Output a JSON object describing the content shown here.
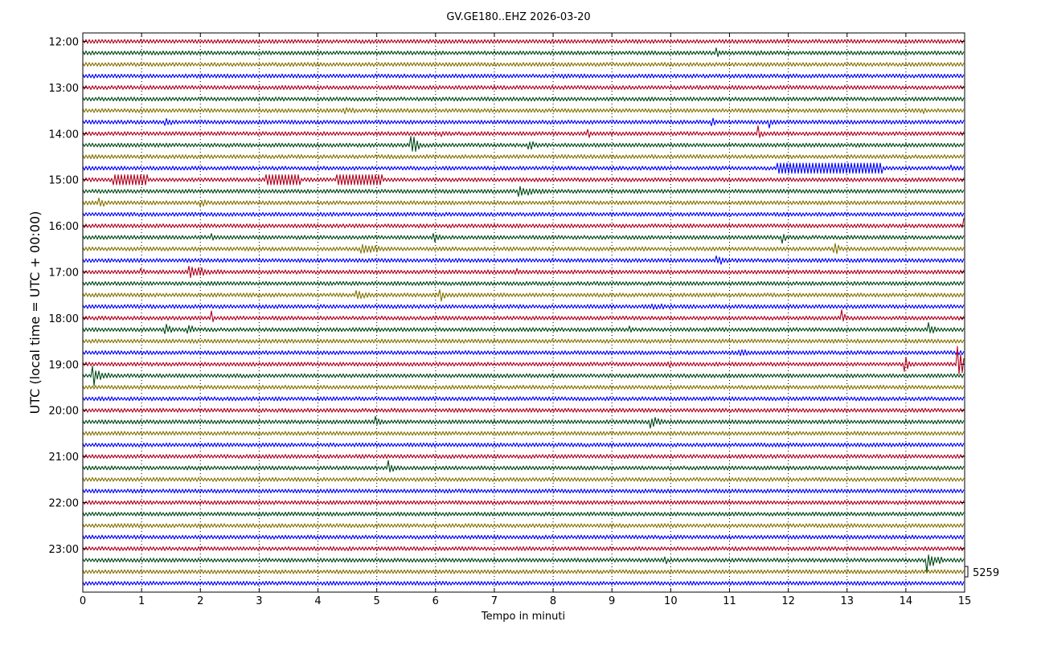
{
  "chart_data": {
    "type": "line",
    "title": "GV.GE180..EHZ 2026-03-20",
    "xlabel": "Tempo in minuti",
    "ylabel": "UTC (local time = UTC + 00:00)",
    "xlim": [
      0,
      15
    ],
    "x_ticks": [
      "0",
      "1",
      "2",
      "3",
      "4",
      "5",
      "6",
      "7",
      "8",
      "9",
      "10",
      "11",
      "12",
      "13",
      "14",
      "15"
    ],
    "y_ticks": [
      "12:00",
      "13:00",
      "14:00",
      "15:00",
      "16:00",
      "17:00",
      "18:00",
      "19:00",
      "20:00",
      "21:00",
      "22:00",
      "23:00"
    ],
    "scale_label": "5259",
    "grid": "vertical dotted",
    "line_colors": [
      "#b2001e",
      "#004a17",
      "#857300",
      "#0000ff"
    ],
    "traces_per_hour": 4,
    "trace_duration_minutes": 15,
    "events": [
      {
        "t": "12:15",
        "x": 10.8,
        "amp": 1.0,
        "dur": 0.2
      },
      {
        "t": "12:15",
        "x": 11.5,
        "amp": 0.5,
        "dur": 0.4
      },
      {
        "t": "12:45",
        "x": 0.2,
        "amp": 0.6,
        "dur": 0.1
      },
      {
        "t": "12:45",
        "x": 8.2,
        "amp": 0.5,
        "dur": 0.4
      },
      {
        "t": "13:30",
        "x": 4.5,
        "amp": 0.6,
        "dur": 0.6
      },
      {
        "t": "13:30",
        "x": 14.3,
        "amp": 0.9,
        "dur": 0.1
      },
      {
        "t": "13:45",
        "x": 1.4,
        "amp": 1.4,
        "dur": 0.2
      },
      {
        "t": "13:45",
        "x": 10.7,
        "amp": 1.2,
        "dur": 0.1
      },
      {
        "t": "13:45",
        "x": 11.7,
        "amp": 0.9,
        "dur": 0.2
      },
      {
        "t": "14:00",
        "x": 6.1,
        "amp": 0.8,
        "dur": 0.1
      },
      {
        "t": "14:00",
        "x": 8.6,
        "amp": 1.1,
        "dur": 0.1
      },
      {
        "t": "14:00",
        "x": 11.5,
        "amp": 1.6,
        "dur": 0.1
      },
      {
        "t": "14:15",
        "x": 5.6,
        "amp": 2.0,
        "dur": 0.2
      },
      {
        "t": "14:15",
        "x": 7.6,
        "amp": 0.9,
        "dur": 0.3
      },
      {
        "t": "14:45",
        "x": 12.7,
        "amp": 0.8,
        "dur": 1.8,
        "box": true
      },
      {
        "t": "14:45",
        "x": 14.8,
        "amp": 0.5,
        "dur": 0.3
      },
      {
        "t": "15:00",
        "x": 0.8,
        "amp": 0.8,
        "dur": 0.6,
        "box": true
      },
      {
        "t": "15:00",
        "x": 3.4,
        "amp": 0.8,
        "dur": 0.6,
        "box": true
      },
      {
        "t": "15:00",
        "x": 4.7,
        "amp": 0.8,
        "dur": 0.8,
        "box": true
      },
      {
        "t": "15:15",
        "x": 7.5,
        "amp": 1.0,
        "dur": 0.6
      },
      {
        "t": "15:30",
        "x": 0.3,
        "amp": 1.2,
        "dur": 0.2
      },
      {
        "t": "15:30",
        "x": 2.0,
        "amp": 1.2,
        "dur": 0.2
      },
      {
        "t": "16:00",
        "x": 10.3,
        "amp": 0.6,
        "dur": 0.2
      },
      {
        "t": "16:00",
        "x": 15.0,
        "amp": 1.3,
        "dur": 0.1
      },
      {
        "t": "16:15",
        "x": 2.2,
        "amp": 1.0,
        "dur": 0.2
      },
      {
        "t": "16:15",
        "x": 6.0,
        "amp": 0.8,
        "dur": 0.3
      },
      {
        "t": "16:15",
        "x": 11.9,
        "amp": 1.4,
        "dur": 0.1
      },
      {
        "t": "16:30",
        "x": 4.8,
        "amp": 1.2,
        "dur": 0.6
      },
      {
        "t": "16:30",
        "x": 12.8,
        "amp": 1.2,
        "dur": 0.2
      },
      {
        "t": "16:45",
        "x": 10.8,
        "amp": 1.0,
        "dur": 0.3
      },
      {
        "t": "17:00",
        "x": 1.0,
        "amp": 0.7,
        "dur": 0.2
      },
      {
        "t": "17:00",
        "x": 1.9,
        "amp": 1.1,
        "dur": 0.7
      },
      {
        "t": "17:00",
        "x": 7.4,
        "amp": 0.6,
        "dur": 0.4
      },
      {
        "t": "17:30",
        "x": 4.7,
        "amp": 0.8,
        "dur": 0.4
      },
      {
        "t": "17:30",
        "x": 6.1,
        "amp": 1.2,
        "dur": 0.2
      },
      {
        "t": "17:45",
        "x": 9.8,
        "amp": 0.6,
        "dur": 0.8
      },
      {
        "t": "18:00",
        "x": 2.2,
        "amp": 1.3,
        "dur": 0.1
      },
      {
        "t": "18:00",
        "x": 12.9,
        "amp": 2.0,
        "dur": 0.1
      },
      {
        "t": "18:15",
        "x": 1.4,
        "amp": 1.3,
        "dur": 0.2
      },
      {
        "t": "18:15",
        "x": 1.8,
        "amp": 1.0,
        "dur": 0.3
      },
      {
        "t": "18:15",
        "x": 9.3,
        "amp": 1.2,
        "dur": 0.1
      },
      {
        "t": "18:15",
        "x": 14.4,
        "amp": 1.3,
        "dur": 0.2
      },
      {
        "t": "18:45",
        "x": 11.2,
        "amp": 0.7,
        "dur": 0.4
      },
      {
        "t": "19:00",
        "x": 10.0,
        "amp": 0.6,
        "dur": 0.4
      },
      {
        "t": "19:00",
        "x": 14.0,
        "amp": 1.4,
        "dur": 0.2
      },
      {
        "t": "19:00",
        "x": 14.9,
        "amp": 3.0,
        "dur": 0.2
      },
      {
        "t": "19:15",
        "x": 0.2,
        "amp": 2.0,
        "dur": 0.3
      },
      {
        "t": "20:15",
        "x": 5.0,
        "amp": 1.0,
        "dur": 0.2
      },
      {
        "t": "20:15",
        "x": 9.7,
        "amp": 1.0,
        "dur": 0.4
      },
      {
        "t": "21:15",
        "x": 5.2,
        "amp": 1.4,
        "dur": 0.2
      },
      {
        "t": "21:30",
        "x": 11.7,
        "amp": 0.8,
        "dur": 0.1
      },
      {
        "t": "23:15",
        "x": 9.9,
        "amp": 1.2,
        "dur": 0.1
      },
      {
        "t": "23:15",
        "x": 14.4,
        "amp": 1.8,
        "dur": 0.3
      }
    ]
  }
}
